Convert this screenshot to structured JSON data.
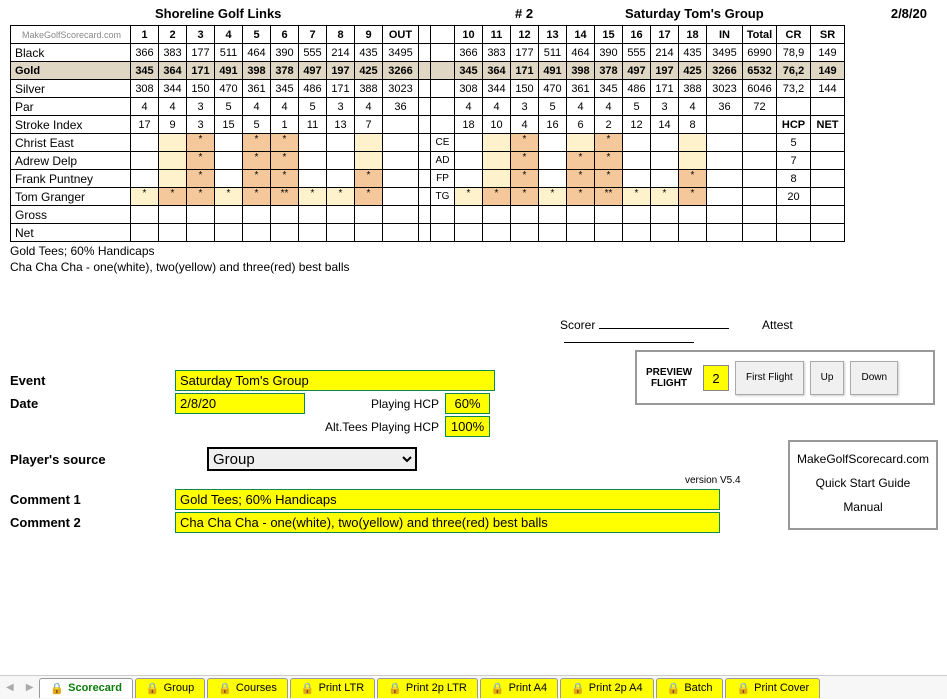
{
  "header": {
    "course": "Shoreline Golf Links",
    "num": "# 2",
    "group": "Saturday Tom's Group",
    "date": "2/8/20"
  },
  "brand": "MakeGolfScorecard.com",
  "column_headers_front": [
    "1",
    "2",
    "3",
    "4",
    "5",
    "6",
    "7",
    "8",
    "9",
    "OUT"
  ],
  "column_headers_back": [
    "10",
    "11",
    "12",
    "13",
    "14",
    "15",
    "16",
    "17",
    "18",
    "IN"
  ],
  "stat_headers": [
    "Total",
    "CR",
    "SR"
  ],
  "rows": {
    "black": {
      "label": "Black",
      "front": [
        "366",
        "383",
        "177",
        "511",
        "464",
        "390",
        "555",
        "214",
        "435",
        "3495"
      ],
      "back": [
        "366",
        "383",
        "177",
        "511",
        "464",
        "390",
        "555",
        "214",
        "435",
        "3495"
      ],
      "stats": [
        "6990",
        "78,9",
        "149"
      ]
    },
    "gold": {
      "label": "Gold",
      "front": [
        "345",
        "364",
        "171",
        "491",
        "398",
        "378",
        "497",
        "197",
        "425",
        "3266"
      ],
      "back": [
        "345",
        "364",
        "171",
        "491",
        "398",
        "378",
        "497",
        "197",
        "425",
        "3266"
      ],
      "stats": [
        "6532",
        "76,2",
        "149"
      ]
    },
    "silver": {
      "label": "Silver",
      "front": [
        "308",
        "344",
        "150",
        "470",
        "361",
        "345",
        "486",
        "171",
        "388",
        "3023"
      ],
      "back": [
        "308",
        "344",
        "150",
        "470",
        "361",
        "345",
        "486",
        "171",
        "388",
        "3023"
      ],
      "stats": [
        "6046",
        "73,2",
        "144"
      ]
    },
    "par": {
      "label": "Par",
      "front": [
        "4",
        "4",
        "3",
        "5",
        "4",
        "4",
        "5",
        "3",
        "4",
        "36"
      ],
      "back": [
        "4",
        "4",
        "3",
        "5",
        "4",
        "4",
        "5",
        "3",
        "4",
        "36"
      ],
      "stats": [
        "72",
        "",
        ""
      ]
    },
    "si": {
      "label": "Stroke Index",
      "front": [
        "17",
        "9",
        "3",
        "15",
        "5",
        "1",
        "11",
        "13",
        "7",
        ""
      ],
      "back": [
        "18",
        "10",
        "4",
        "16",
        "6",
        "2",
        "12",
        "14",
        "8",
        ""
      ],
      "stats": [
        "",
        "HCP",
        "NET"
      ]
    }
  },
  "players": [
    {
      "label": "Christ East",
      "init": "CE",
      "hcp": "5",
      "front_v": [
        "",
        "",
        "*",
        "",
        "*",
        "*",
        "",
        "",
        "",
        ""
      ],
      "back_v": [
        "",
        "",
        "*",
        "",
        "",
        "*",
        "",
        "",
        "",
        ""
      ],
      "front_c": [
        "",
        "y",
        "o",
        "",
        "o",
        "o",
        "",
        "",
        "y",
        ""
      ],
      "back_c": [
        "",
        "y",
        "o",
        "",
        "y",
        "o",
        "",
        "",
        "y",
        ""
      ]
    },
    {
      "label": "Adrew Delp",
      "init": "AD",
      "hcp": "7",
      "front_v": [
        "",
        "",
        "*",
        "",
        "*",
        "*",
        "",
        "",
        "",
        ""
      ],
      "back_v": [
        "",
        "",
        "*",
        "",
        "*",
        "*",
        "",
        "",
        "",
        ""
      ],
      "front_c": [
        "",
        "y",
        "o",
        "",
        "o",
        "o",
        "",
        "",
        "y",
        ""
      ],
      "back_c": [
        "",
        "y",
        "o",
        "",
        "o",
        "o",
        "",
        "",
        "y",
        ""
      ]
    },
    {
      "label": "Frank Puntney",
      "init": "FP",
      "hcp": "8",
      "front_v": [
        "",
        "",
        "*",
        "",
        "*",
        "*",
        "",
        "",
        "*",
        ""
      ],
      "back_v": [
        "",
        "",
        "*",
        "",
        "*",
        "*",
        "",
        "",
        "*",
        ""
      ],
      "front_c": [
        "",
        "y",
        "o",
        "",
        "o",
        "o",
        "",
        "",
        "o",
        ""
      ],
      "back_c": [
        "",
        "y",
        "o",
        "",
        "o",
        "o",
        "",
        "",
        "o",
        ""
      ]
    },
    {
      "label": "Tom Granger",
      "init": "TG",
      "hcp": "20",
      "front_v": [
        "*",
        "*",
        "*",
        "*",
        "*",
        "**",
        "*",
        "*",
        "*",
        ""
      ],
      "back_v": [
        "*",
        "*",
        "*",
        "*",
        "*",
        "**",
        "*",
        "*",
        "*",
        ""
      ],
      "front_c": [
        "y",
        "o",
        "o",
        "y",
        "o",
        "o",
        "y",
        "y",
        "o",
        ""
      ],
      "back_c": [
        "y",
        "o",
        "o",
        "y",
        "o",
        "o",
        "y",
        "y",
        "o",
        ""
      ]
    }
  ],
  "gross_label": "Gross",
  "net_label": "Net",
  "notes": {
    "line1": "Gold Tees; 60% Handicaps",
    "line2": "Cha Cha Cha - one(white), two(yellow) and three(red) best balls"
  },
  "sig": {
    "scorer": "Scorer",
    "attest": "Attest"
  },
  "form": {
    "event_label": "Event",
    "event_value": "Saturday Tom's Group",
    "date_label": "Date",
    "date_value": "2/8/20",
    "playing_hcp_label": "Playing HCP",
    "playing_hcp_value": "60%",
    "alt_hcp_label": "Alt.Tees Playing HCP",
    "alt_hcp_value": "100%",
    "source_label": "Player's source",
    "source_value": "Group",
    "comment1_label": "Comment 1",
    "comment1_value": "Gold Tees; 60% Handicaps",
    "comment2_label": "Comment 2",
    "comment2_value": "Cha Cha Cha - one(white), two(yellow) and three(red) best balls"
  },
  "preview": {
    "label": "PREVIEW FLIGHT",
    "num": "2",
    "first": "First Flight",
    "up": "Up",
    "down": "Down"
  },
  "info_box": {
    "site": "MakeGolfScorecard.com",
    "guide": "Quick Start Guide",
    "manual": "Manual"
  },
  "version": "version V5.4",
  "tabs": [
    "Scorecard",
    "Group",
    "Courses",
    "Print LTR",
    "Print 2p LTR",
    "Print A4",
    "Print 2p A4",
    "Batch",
    "Print Cover"
  ],
  "colors": {
    "gold_bg": "#dfd7c3",
    "orange": "#f4c89a",
    "yellow": "#fdf2cc",
    "hi": "#ffff00"
  }
}
